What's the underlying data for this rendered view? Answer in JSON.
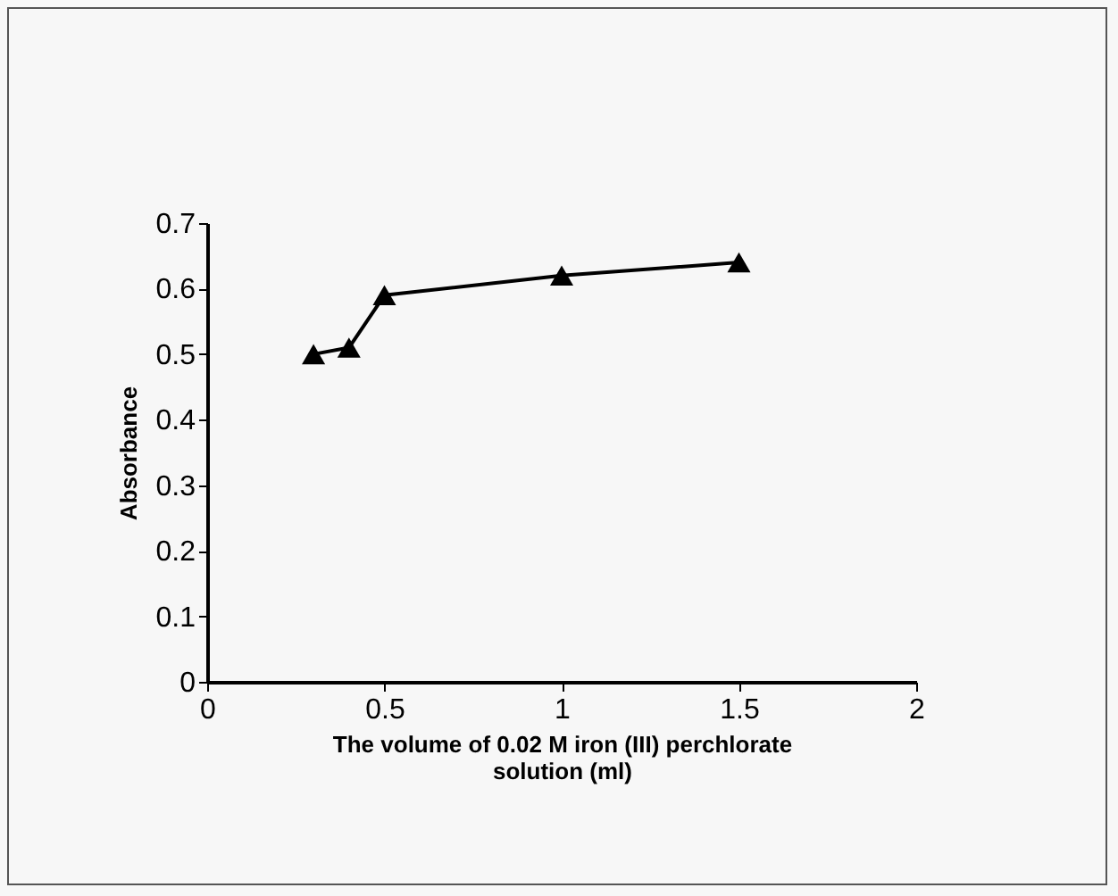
{
  "chart_data": {
    "type": "line",
    "xlabel": "The volume of 0.02 M iron (III) perchlorate solution (ml)",
    "ylabel": "Absorbance",
    "x": [
      0.3,
      0.4,
      0.5,
      1.0,
      1.5
    ],
    "series": [
      {
        "color": "#000000",
        "values": [
          0.5,
          0.51,
          0.59,
          0.62,
          0.64
        ]
      }
    ],
    "xlim": [
      0,
      2
    ],
    "xticks": [
      0,
      0.5,
      1,
      1.5,
      2
    ],
    "ylim": [
      0,
      0.7
    ],
    "yticks": [
      0,
      0.1,
      0.2,
      0.3,
      0.4,
      0.5,
      0.6,
      0.7
    ],
    "marker": "triangle",
    "line_style": "solid",
    "grid": false
  }
}
